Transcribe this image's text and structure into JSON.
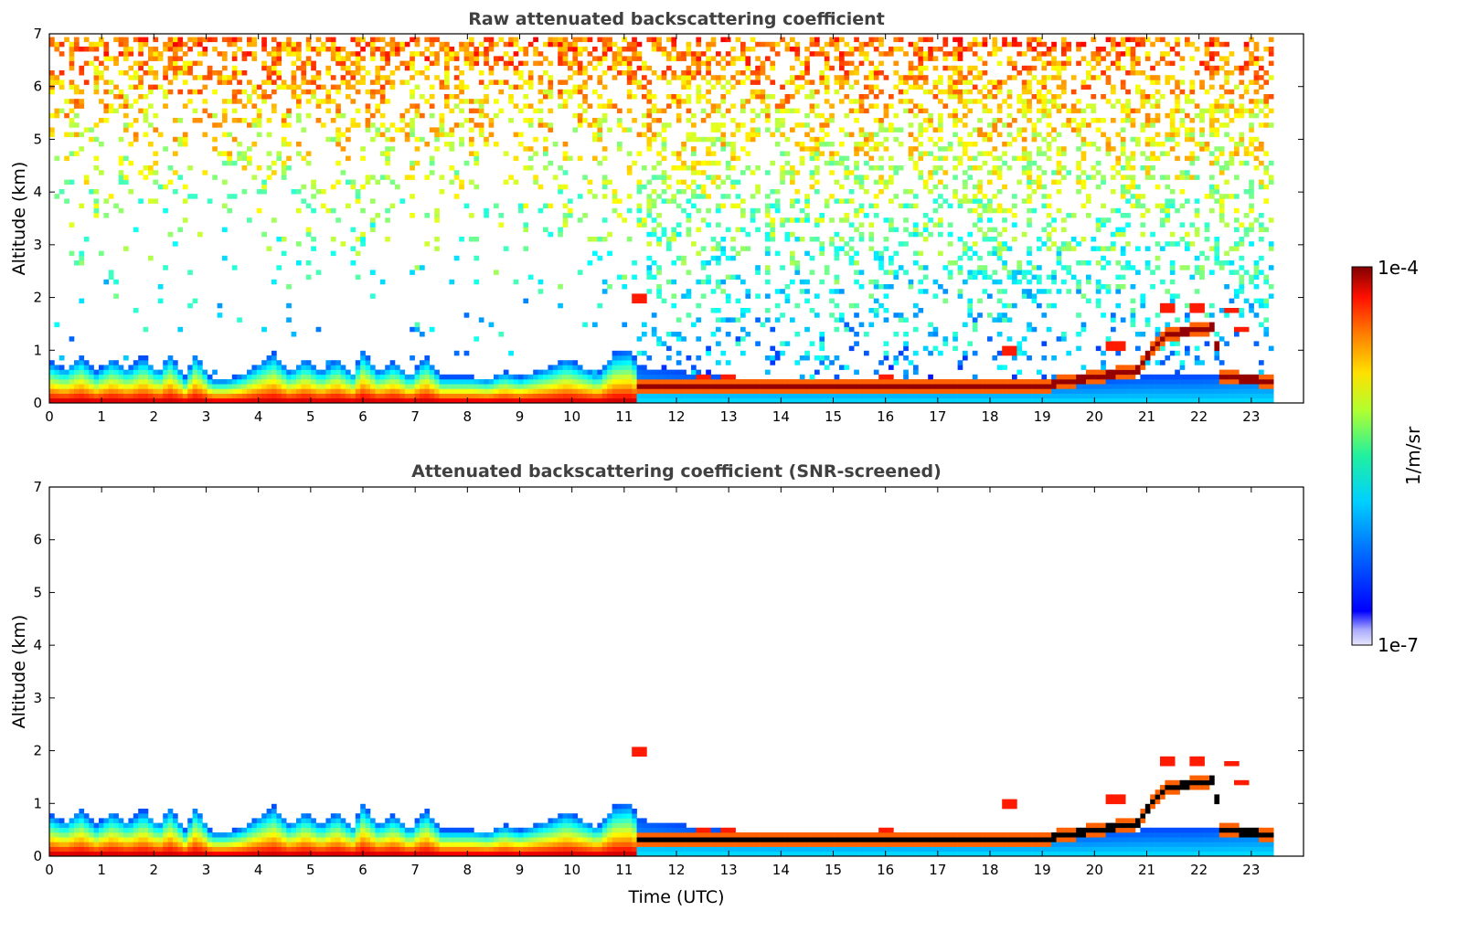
{
  "chart_data": [
    {
      "type": "heatmap",
      "title": "Raw attenuated backscattering coefficient",
      "ylabel": "Altitude (km)",
      "xlabel": "",
      "xlim": [
        0,
        24
      ],
      "ylim": [
        0,
        7
      ],
      "x_ticks": [
        0,
        1,
        2,
        3,
        4,
        5,
        6,
        7,
        8,
        9,
        10,
        11,
        12,
        13,
        14,
        15,
        16,
        17,
        18,
        19,
        20,
        21,
        22,
        23
      ],
      "y_ticks": [
        0,
        1,
        2,
        3,
        4,
        5,
        6,
        7
      ],
      "boundary_layer_top_km": [
        [
          0,
          0.8
        ],
        [
          0.3,
          0.65
        ],
        [
          0.6,
          0.9
        ],
        [
          0.9,
          0.6
        ],
        [
          1.2,
          0.85
        ],
        [
          1.5,
          0.65
        ],
        [
          1.8,
          0.9
        ],
        [
          2.1,
          0.6
        ],
        [
          2.3,
          0.95
        ],
        [
          2.6,
          0.5
        ],
        [
          2.8,
          0.95
        ],
        [
          3.1,
          0.45
        ],
        [
          3.4,
          0.45
        ],
        [
          3.7,
          0.55
        ],
        [
          4.0,
          0.75
        ],
        [
          4.3,
          0.95
        ],
        [
          4.6,
          0.6
        ],
        [
          4.9,
          0.85
        ],
        [
          5.2,
          0.6
        ],
        [
          5.5,
          0.85
        ],
        [
          5.8,
          0.55
        ],
        [
          6.0,
          1.0
        ],
        [
          6.3,
          0.6
        ],
        [
          6.6,
          0.8
        ],
        [
          6.9,
          0.5
        ],
        [
          7.2,
          0.9
        ],
        [
          7.5,
          0.5
        ],
        [
          7.8,
          0.5
        ],
        [
          8.1,
          0.5
        ],
        [
          8.4,
          0.45
        ],
        [
          8.7,
          0.6
        ],
        [
          9.0,
          0.5
        ],
        [
          9.3,
          0.6
        ],
        [
          9.6,
          0.7
        ],
        [
          9.9,
          0.85
        ],
        [
          10.2,
          0.7
        ],
        [
          10.5,
          0.55
        ],
        [
          10.8,
          0.95
        ],
        [
          11.1,
          1.0
        ],
        [
          11.3,
          0.7
        ],
        [
          12,
          0.6
        ],
        [
          13,
          0.5
        ],
        [
          14,
          0.45
        ],
        [
          15,
          0.45
        ],
        [
          16,
          0.45
        ],
        [
          17,
          0.42
        ],
        [
          18,
          0.42
        ],
        [
          19,
          0.42
        ],
        [
          20,
          0.45
        ],
        [
          21,
          0.5
        ],
        [
          22,
          0.5
        ],
        [
          23,
          0.55
        ],
        [
          23.5,
          0.55
        ]
      ],
      "residual_layer_km": [
        [
          11.2,
          0.3
        ],
        [
          13,
          0.3
        ],
        [
          15,
          0.3
        ],
        [
          17,
          0.3
        ],
        [
          19,
          0.32
        ],
        [
          20,
          0.5
        ],
        [
          20.8,
          0.6
        ],
        [
          21.1,
          1.0
        ],
        [
          21.4,
          1.3
        ],
        [
          22.0,
          1.4
        ],
        [
          22.3,
          1.45
        ],
        [
          22.4,
          0.5
        ],
        [
          23.5,
          0.4
        ]
      ],
      "elevated_features_km": [
        [
          11.3,
          2.0
        ],
        [
          12.5,
          0.5
        ],
        [
          13.0,
          0.5
        ],
        [
          16.0,
          0.5
        ],
        [
          21.4,
          1.8
        ],
        [
          22.0,
          1.8
        ],
        [
          22.6,
          1.75
        ],
        [
          22.8,
          1.4
        ],
        [
          18.4,
          1.0
        ],
        [
          20.4,
          1.1
        ]
      ],
      "data_end_utc": 23.5
    },
    {
      "type": "heatmap",
      "title": "Attenuated backscattering coefficient (SNR-screened)",
      "ylabel": "Altitude (km)",
      "xlabel": "Time (UTC)",
      "xlim": [
        0,
        24
      ],
      "ylim": [
        0,
        7
      ],
      "x_ticks": [
        0,
        1,
        2,
        3,
        4,
        5,
        6,
        7,
        8,
        9,
        10,
        11,
        12,
        13,
        14,
        15,
        16,
        17,
        18,
        19,
        20,
        21,
        22,
        23
      ],
      "y_ticks": [
        0,
        1,
        2,
        3,
        4,
        5,
        6,
        7
      ],
      "screened": true,
      "data_end_utc": 23.5
    }
  ],
  "colorbar": {
    "label": "1/m/sr",
    "max_label": "1e-4",
    "min_label": "1e-7",
    "scale": "log",
    "colormap": "jet",
    "range": [
      1e-07,
      0.0001
    ],
    "colors": [
      "#e6e6fa",
      "#0000ff",
      "#00bfff",
      "#00e0a0",
      "#a0ff40",
      "#ffe000",
      "#ff8000",
      "#ff0000",
      "#800000"
    ]
  }
}
